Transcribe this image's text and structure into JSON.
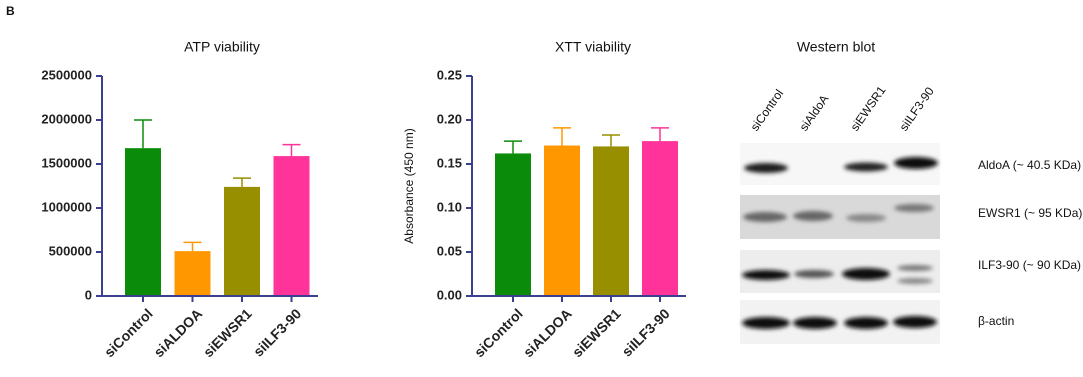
{
  "panel_label": "B",
  "chart_data": [
    {
      "type": "bar",
      "title": "ATP viability",
      "categories": [
        "siControl",
        "siALDOA",
        "siEWSR1",
        "siILF3-90"
      ],
      "values": [
        1680000,
        510000,
        1240000,
        1590000
      ],
      "errors": [
        320000,
        100000,
        100000,
        130000
      ],
      "colors": [
        "#0a8c0a",
        "#ff9800",
        "#988f00",
        "#ff3399"
      ],
      "ylim": [
        0,
        2500000
      ],
      "yticks": [
        0,
        500000,
        1000000,
        1500000,
        2000000,
        2500000
      ]
    },
    {
      "type": "bar",
      "title": "XTT viability",
      "ylabel": "Absorbance (450 nm)",
      "categories": [
        "siControl",
        "siALDOA",
        "siEWSR1",
        "siILF3-90"
      ],
      "values": [
        0.162,
        0.171,
        0.17,
        0.176
      ],
      "errors": [
        0.014,
        0.02,
        0.013,
        0.015
      ],
      "colors": [
        "#0a8c0a",
        "#ff9800",
        "#988f00",
        "#ff3399"
      ],
      "ylim": [
        0,
        0.25
      ],
      "yticks": [
        {
          "value": 0,
          "label": "0.00"
        },
        0.05,
        {
          "value": 0.1,
          "label": "0.10"
        },
        0.15,
        {
          "value": 0.2,
          "label": "0.20"
        },
        0.25
      ]
    }
  ],
  "western_blot": {
    "title": "Western blot",
    "lanes": [
      "siControl",
      "siAldoA",
      "siEWSR1",
      "siILF3-90"
    ],
    "rows": [
      "AldoA (~ 40.5 KDa)",
      "EWSR1 (~ 95 KDa)",
      "ILF3-90 (~ 90 KDa)",
      "β-actin"
    ]
  }
}
